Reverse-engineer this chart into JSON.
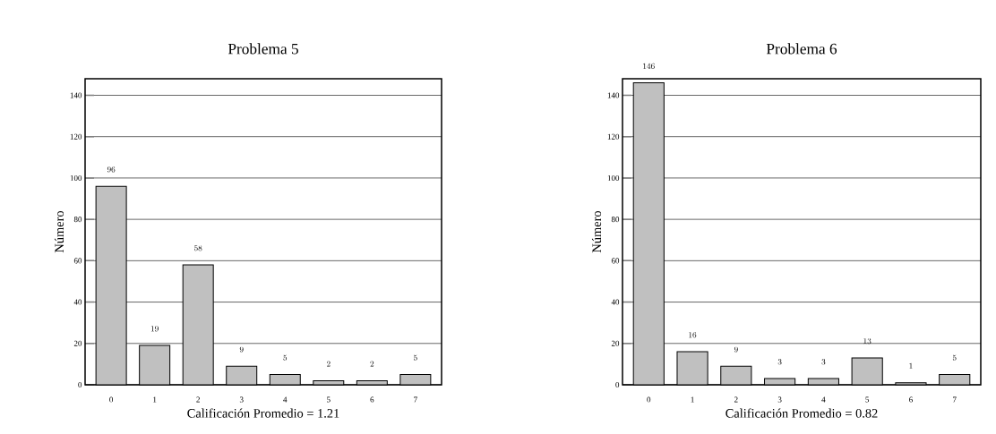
{
  "chart_data": [
    {
      "type": "bar",
      "title": "Problema 5",
      "xlabel": "Calificación Promedio = 1.21",
      "ylabel": "Número",
      "categories": [
        "0",
        "1",
        "2",
        "3",
        "4",
        "5",
        "6",
        "7"
      ],
      "values": [
        96,
        19,
        58,
        9,
        5,
        2,
        2,
        5
      ],
      "color": "#c0c0c0",
      "ylim": [
        0,
        148
      ],
      "yticks": [
        0,
        20,
        40,
        60,
        80,
        100,
        120,
        140
      ],
      "grid": "y",
      "data_labels": true
    },
    {
      "type": "bar",
      "title": "Problema 6",
      "xlabel": "Calificación Promedio = 0.82",
      "ylabel": "Número",
      "categories": [
        "0",
        "1",
        "2",
        "3",
        "4",
        "5",
        "6",
        "7"
      ],
      "values": [
        146,
        16,
        9,
        3,
        3,
        13,
        1,
        5
      ],
      "color": "#c0c0c0",
      "ylim": [
        0,
        148
      ],
      "yticks": [
        0,
        20,
        40,
        60,
        80,
        100,
        120,
        140
      ],
      "grid": "y",
      "data_labels": true
    }
  ]
}
